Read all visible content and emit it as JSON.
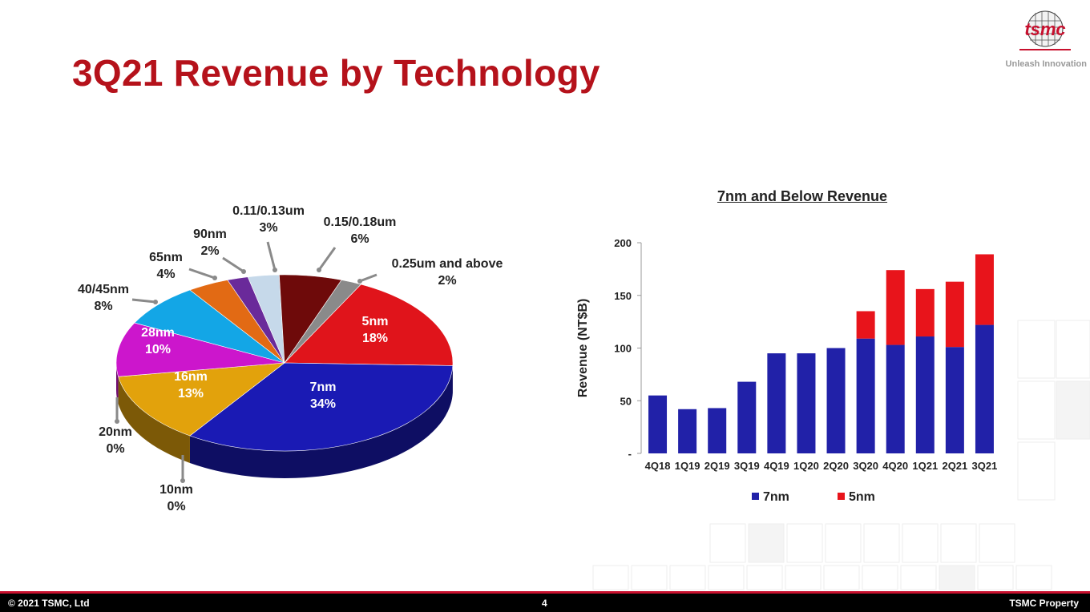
{
  "slide": {
    "title": "3Q21 Revenue by Technology",
    "logo_text": "tsmc",
    "tagline": "Unleash Innovation"
  },
  "footer": {
    "copyright": "© 2021 TSMC, Ltd",
    "page_number": "4",
    "property": "TSMC Property"
  },
  "colors": {
    "title_red": "#b5121b",
    "footer_black": "#000000",
    "footer_rule": "#c8102e",
    "bar_7nm": "#2121a8",
    "bar_5nm": "#e8141b"
  },
  "chart_data": [
    {
      "type": "pie",
      "title": "",
      "slices": [
        {
          "label": "5nm",
          "pct_label": "18%",
          "value": 18,
          "color": "#e0141b"
        },
        {
          "label": "7nm",
          "pct_label": "34%",
          "value": 34,
          "color": "#1a1ab4"
        },
        {
          "label": "10nm",
          "pct_label": "0%",
          "value": 0,
          "color": "#7a7a7a"
        },
        {
          "label": "20nm",
          "pct_label": "0%",
          "value": 0,
          "color": "#bbbbbb"
        },
        {
          "label": "16nm",
          "pct_label": "13%",
          "value": 13,
          "color": "#e2a20c"
        },
        {
          "label": "28nm",
          "pct_label": "10%",
          "value": 10,
          "color": "#cc16cc"
        },
        {
          "label": "40/45nm",
          "pct_label": "8%",
          "value": 8,
          "color": "#13a6e6"
        },
        {
          "label": "65nm",
          "pct_label": "4%",
          "value": 4,
          "color": "#e26a14"
        },
        {
          "label": "90nm",
          "pct_label": "2%",
          "value": 2,
          "color": "#6a2a9a"
        },
        {
          "label": "0.11/0.13um",
          "pct_label": "3%",
          "value": 3,
          "color": "#c6d9ea"
        },
        {
          "label": "0.15/0.18um",
          "pct_label": "6%",
          "value": 6,
          "color": "#6e0a0a"
        },
        {
          "label": "0.25um and above",
          "pct_label": "2%",
          "value": 2,
          "color": "#8a8a8a"
        }
      ]
    },
    {
      "type": "bar",
      "stacked": true,
      "title": "7nm and Below Revenue",
      "xlabel": "",
      "ylabel": "Revenue (NT$B)",
      "ylim": [
        0,
        200
      ],
      "yticks": [
        0,
        50,
        100,
        150,
        200
      ],
      "ytick_labels": [
        "-",
        "50",
        "100",
        "150",
        "200"
      ],
      "categories": [
        "4Q18",
        "1Q19",
        "2Q19",
        "3Q19",
        "4Q19",
        "1Q20",
        "2Q20",
        "3Q20",
        "4Q20",
        "1Q21",
        "2Q21",
        "3Q21"
      ],
      "series": [
        {
          "name": "7nm",
          "color": "#2121a8",
          "values": [
            55,
            42,
            43,
            68,
            95,
            95,
            100,
            109,
            103,
            111,
            101,
            122
          ]
        },
        {
          "name": "5nm",
          "color": "#e8141b",
          "values": [
            0,
            0,
            0,
            0,
            0,
            0,
            0,
            26,
            71,
            45,
            62,
            67
          ]
        }
      ],
      "legend": "bottom",
      "grid": false
    }
  ]
}
